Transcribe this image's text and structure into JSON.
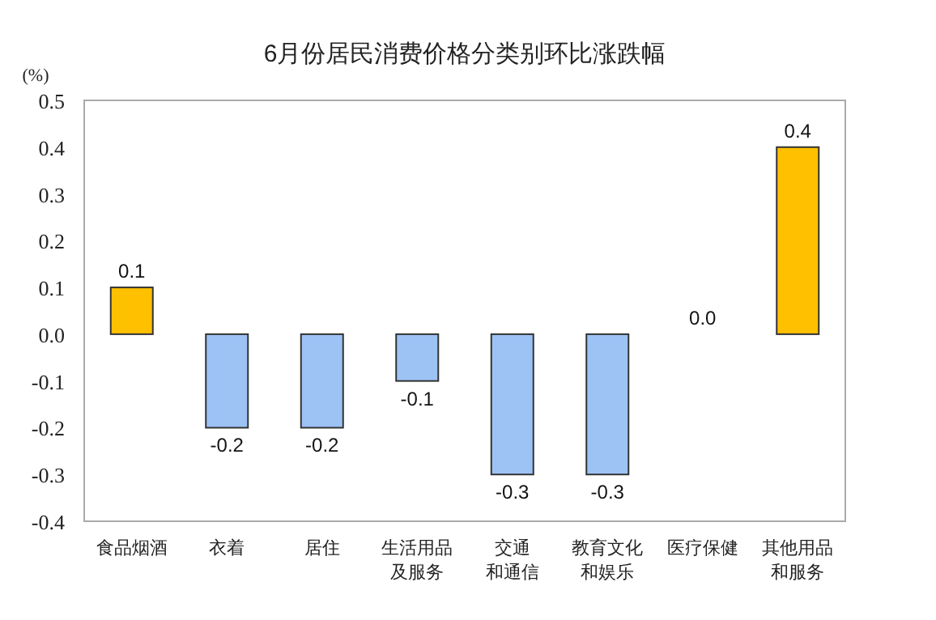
{
  "chart_data": {
    "type": "bar",
    "title": "6月份居民消费价格分类别环比涨跌幅",
    "ylabel": "(%)",
    "categories": [
      "食品烟酒",
      "衣着",
      "居住",
      "生活用品及服务",
      "交通和通信",
      "教育文化和娱乐",
      "医疗保健",
      "其他用品和服务"
    ],
    "values": [
      0.1,
      -0.2,
      -0.2,
      -0.1,
      -0.3,
      -0.3,
      0.0,
      0.4
    ],
    "value_labels": [
      "0.1",
      "-0.2",
      "-0.2",
      "-0.1",
      "-0.3",
      "-0.3",
      "0.0",
      "0.4"
    ],
    "colors": [
      "#ffc000",
      "#9dc3f5",
      "#9dc3f5",
      "#9dc3f5",
      "#9dc3f5",
      "#9dc3f5",
      "#9dc3f5",
      "#ffc000"
    ],
    "ylim": [
      -0.4,
      0.5
    ],
    "yticks": [
      -0.4,
      -0.3,
      -0.2,
      -0.1,
      {
        "value": 0,
        "label": "0.0"
      },
      0.1,
      0.2,
      0.3,
      0.4,
      0.5
    ]
  }
}
